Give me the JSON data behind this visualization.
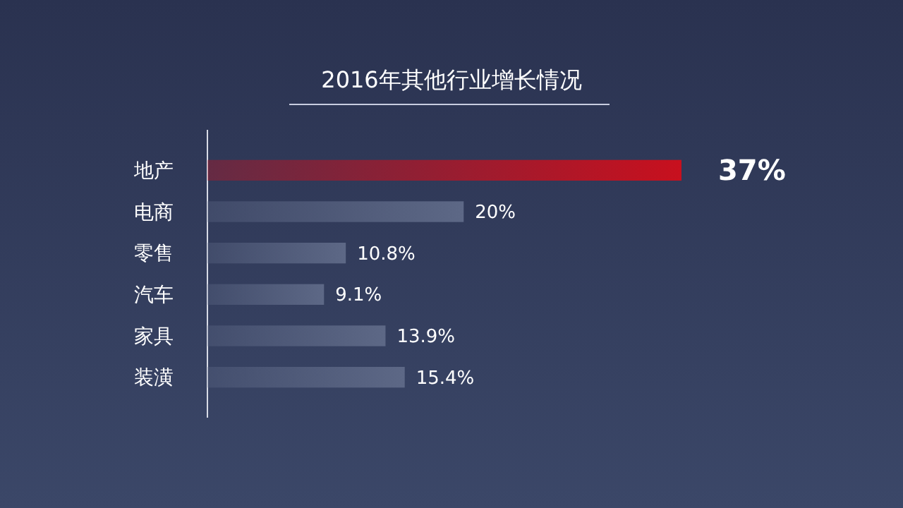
{
  "chart_data": {
    "type": "bar",
    "orientation": "horizontal",
    "title": "2016年其他行业增长情况",
    "categories": [
      "地产",
      "电商",
      "零售",
      "汽车",
      "家具",
      "装潢"
    ],
    "values": [
      37,
      20,
      10.8,
      9.1,
      13.9,
      15.4
    ],
    "colors": [
      "#c8101e",
      "#5d6886",
      "#5d6886",
      "#5d6886",
      "#5d6886",
      "#5d6886"
    ],
    "value_labels": [
      "37%",
      "20%",
      "10.8%",
      "9.1%",
      "13.9%",
      "15.4%"
    ]
  }
}
